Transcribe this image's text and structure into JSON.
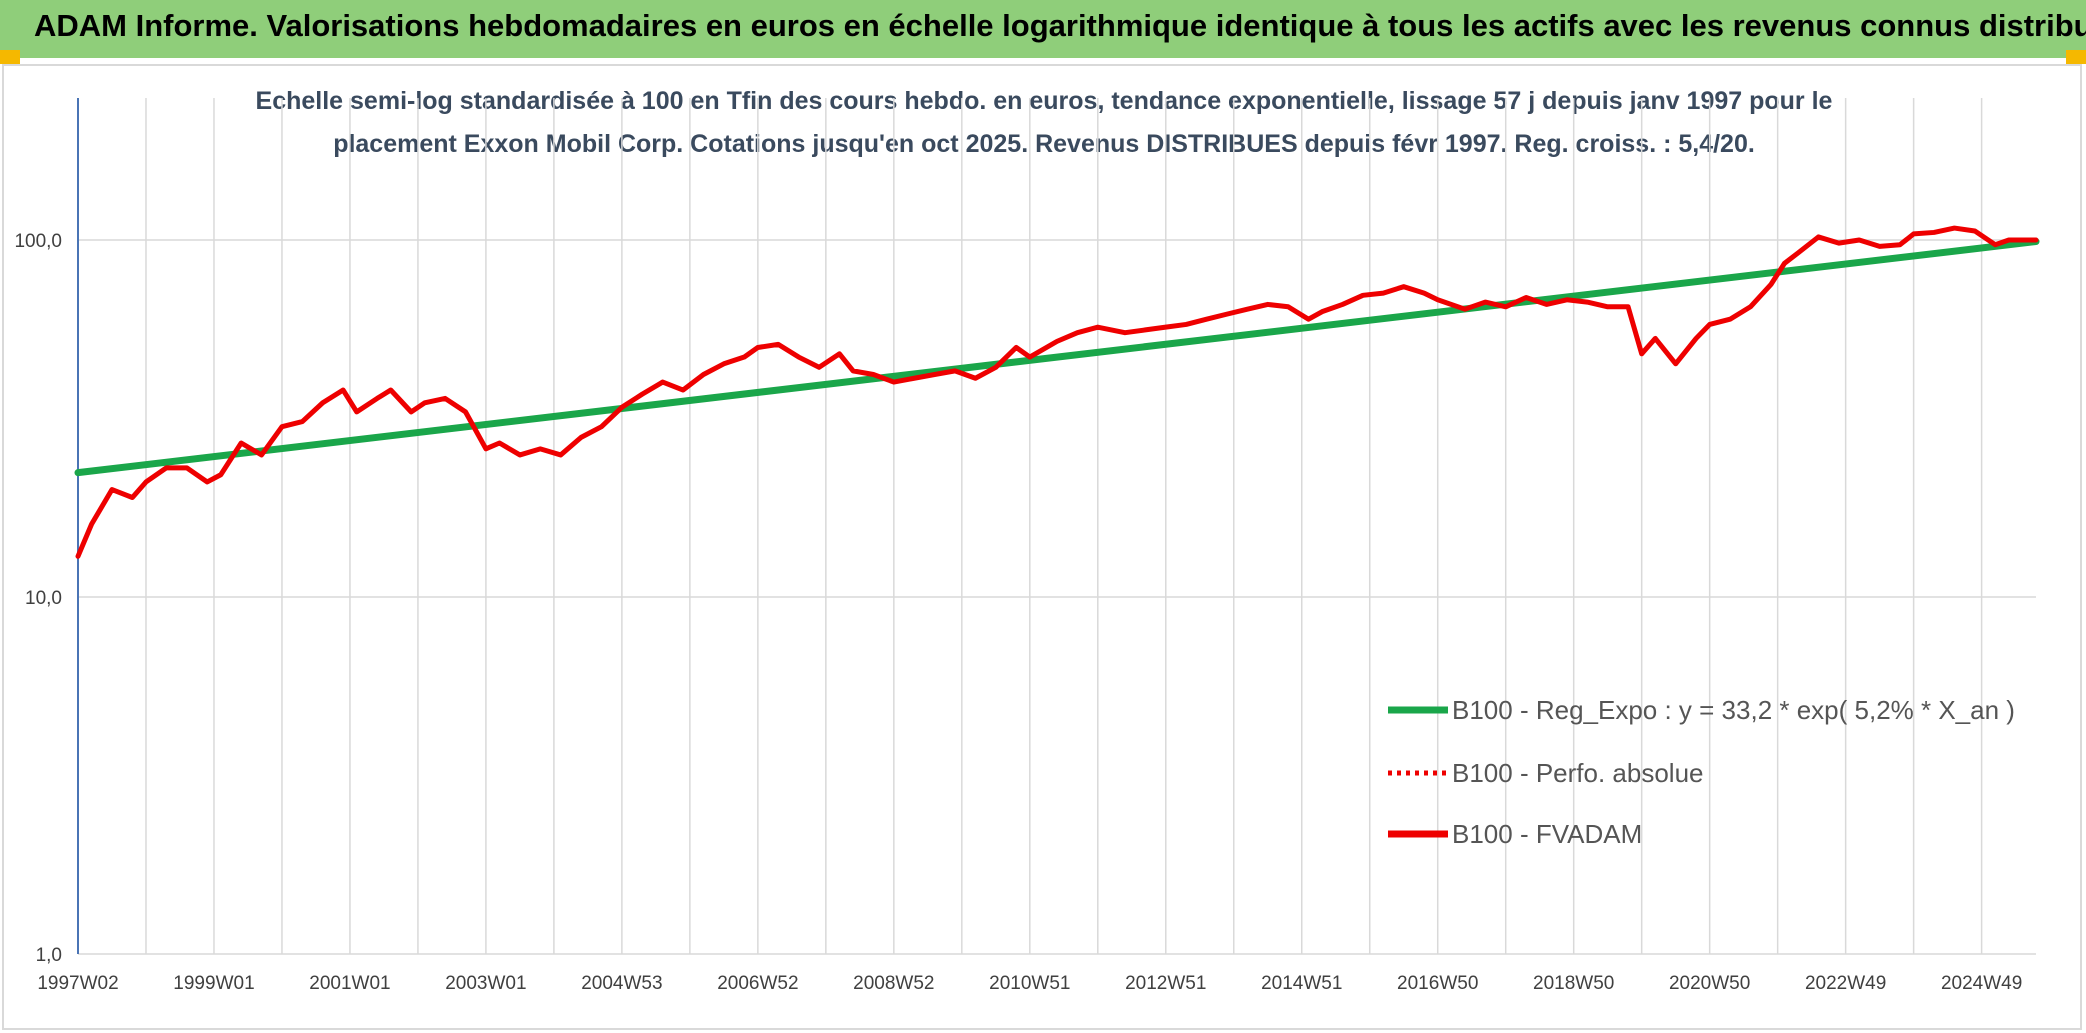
{
  "header": {
    "title": "ADAM Informe. Valorisations hebdomadaires en euros en échelle logarithmique identique à tous les actifs avec les revenus connus distribués"
  },
  "colors": {
    "banner": "#8fce7a",
    "accent": "#f5b800",
    "trend": "#1aa64a",
    "price": "#ee0000"
  },
  "chart_data": {
    "type": "line",
    "subtitle_lines": [
      "Echelle semi-log standardisée à 100 en Tfin des cours hebdo. en euros, tendance exponentielle, lissage 57 j depuis janv 1997 pour le",
      "placement Exxon Mobil Corp. Cotations jusqu'en oct 2025. Revenus DISTRIBUES depuis févr 1997. Reg. croiss. : 5,4/20."
    ],
    "y_scale": "log",
    "ylim": [
      1,
      200
    ],
    "y_ticks": [
      {
        "value": 1,
        "label": "1,0"
      },
      {
        "value": 10,
        "label": "10,0"
      },
      {
        "value": 100,
        "label": "100,0"
      }
    ],
    "xlim": [
      1997.0,
      2025.8
    ],
    "x_ticks": [
      {
        "value": 1997.0,
        "label": "1997W02"
      },
      {
        "value": 1999.0,
        "label": "1999W01"
      },
      {
        "value": 2001.0,
        "label": "2001W01"
      },
      {
        "value": 2003.0,
        "label": "2003W01"
      },
      {
        "value": 2005.0,
        "label": "2004W53"
      },
      {
        "value": 2007.0,
        "label": "2006W52"
      },
      {
        "value": 2009.0,
        "label": "2008W52"
      },
      {
        "value": 2011.0,
        "label": "2010W51"
      },
      {
        "value": 2013.0,
        "label": "2012W51"
      },
      {
        "value": 2015.0,
        "label": "2014W51"
      },
      {
        "value": 2017.0,
        "label": "2016W50"
      },
      {
        "value": 2019.0,
        "label": "2018W50"
      },
      {
        "value": 2021.0,
        "label": "2020W50"
      },
      {
        "value": 2023.0,
        "label": "2022W49"
      },
      {
        "value": 2025.0,
        "label": "2024W49"
      }
    ],
    "grid_x": true,
    "grid_y": true,
    "legend_position": "bottom-right",
    "series": [
      {
        "name": "B100 - Reg_Expo : y = 33,2 * exp( 5,2% *  X_an )",
        "style": "solid-thick",
        "color": "#1aa64a",
        "x": [
          1997.0,
          2025.8
        ],
        "y": [
          22.3,
          99.0
        ]
      },
      {
        "name": "B100 - Perfo. absolue",
        "style": "dotted",
        "color": "#ee0000",
        "x": [],
        "y": []
      },
      {
        "name": "B100 - FVADAM",
        "style": "solid-thick",
        "color": "#ee0000",
        "x": [
          1997.0,
          1997.2,
          1997.5,
          1997.8,
          1998.0,
          1998.3,
          1998.6,
          1998.9,
          1999.1,
          1999.4,
          1999.7,
          2000.0,
          2000.3,
          2000.6,
          2000.9,
          2001.1,
          2001.4,
          2001.6,
          2001.9,
          2002.1,
          2002.4,
          2002.7,
          2003.0,
          2003.2,
          2003.5,
          2003.8,
          2004.1,
          2004.4,
          2004.7,
          2005.0,
          2005.3,
          2005.6,
          2005.9,
          2006.2,
          2006.5,
          2006.8,
          2007.0,
          2007.3,
          2007.6,
          2007.9,
          2008.2,
          2008.4,
          2008.7,
          2009.0,
          2009.3,
          2009.6,
          2009.9,
          2010.2,
          2010.5,
          2010.8,
          2011.0,
          2011.4,
          2011.7,
          2012.0,
          2012.4,
          2012.7,
          2013.0,
          2013.3,
          2013.6,
          2013.9,
          2014.2,
          2014.5,
          2014.8,
          2015.1,
          2015.3,
          2015.6,
          2015.9,
          2016.2,
          2016.5,
          2016.8,
          2017.0,
          2017.4,
          2017.7,
          2018.0,
          2018.3,
          2018.6,
          2018.9,
          2019.2,
          2019.5,
          2019.8,
          2020.0,
          2020.2,
          2020.5,
          2020.8,
          2021.0,
          2021.3,
          2021.6,
          2021.9,
          2022.1,
          2022.3,
          2022.6,
          2022.9,
          2023.2,
          2023.5,
          2023.8,
          2024.0,
          2024.3,
          2024.6,
          2024.9,
          2025.2,
          2025.4,
          2025.8
        ],
        "y": [
          13.0,
          16.0,
          20.0,
          19.0,
          21.0,
          23.0,
          23.0,
          21.0,
          22.0,
          27.0,
          25.0,
          30.0,
          31.0,
          35.0,
          38.0,
          33.0,
          36.0,
          38.0,
          33.0,
          35.0,
          36.0,
          33.0,
          26.0,
          27.0,
          25.0,
          26.0,
          25.0,
          28.0,
          30.0,
          34.0,
          37.0,
          40.0,
          38.0,
          42.0,
          45.0,
          47.0,
          50.0,
          51.0,
          47.0,
          44.0,
          48.0,
          43.0,
          42.0,
          40.0,
          41.0,
          42.0,
          43.0,
          41.0,
          44.0,
          50.0,
          47.0,
          52.0,
          55.0,
          57.0,
          55.0,
          56.0,
          57.0,
          58.0,
          60.0,
          62.0,
          64.0,
          66.0,
          65.0,
          60.0,
          63.0,
          66.0,
          70.0,
          71.0,
          74.0,
          71.0,
          68.0,
          64.0,
          67.0,
          65.0,
          69.0,
          66.0,
          68.0,
          67.0,
          65.0,
          65.0,
          48.0,
          53.0,
          45.0,
          53.0,
          58.0,
          60.0,
          65.0,
          75.0,
          86.0,
          92.0,
          102.0,
          98.0,
          100.0,
          96.0,
          97.0,
          104.0,
          105.0,
          108.0,
          106.0,
          97.0,
          100.0,
          100.0
        ]
      }
    ]
  }
}
